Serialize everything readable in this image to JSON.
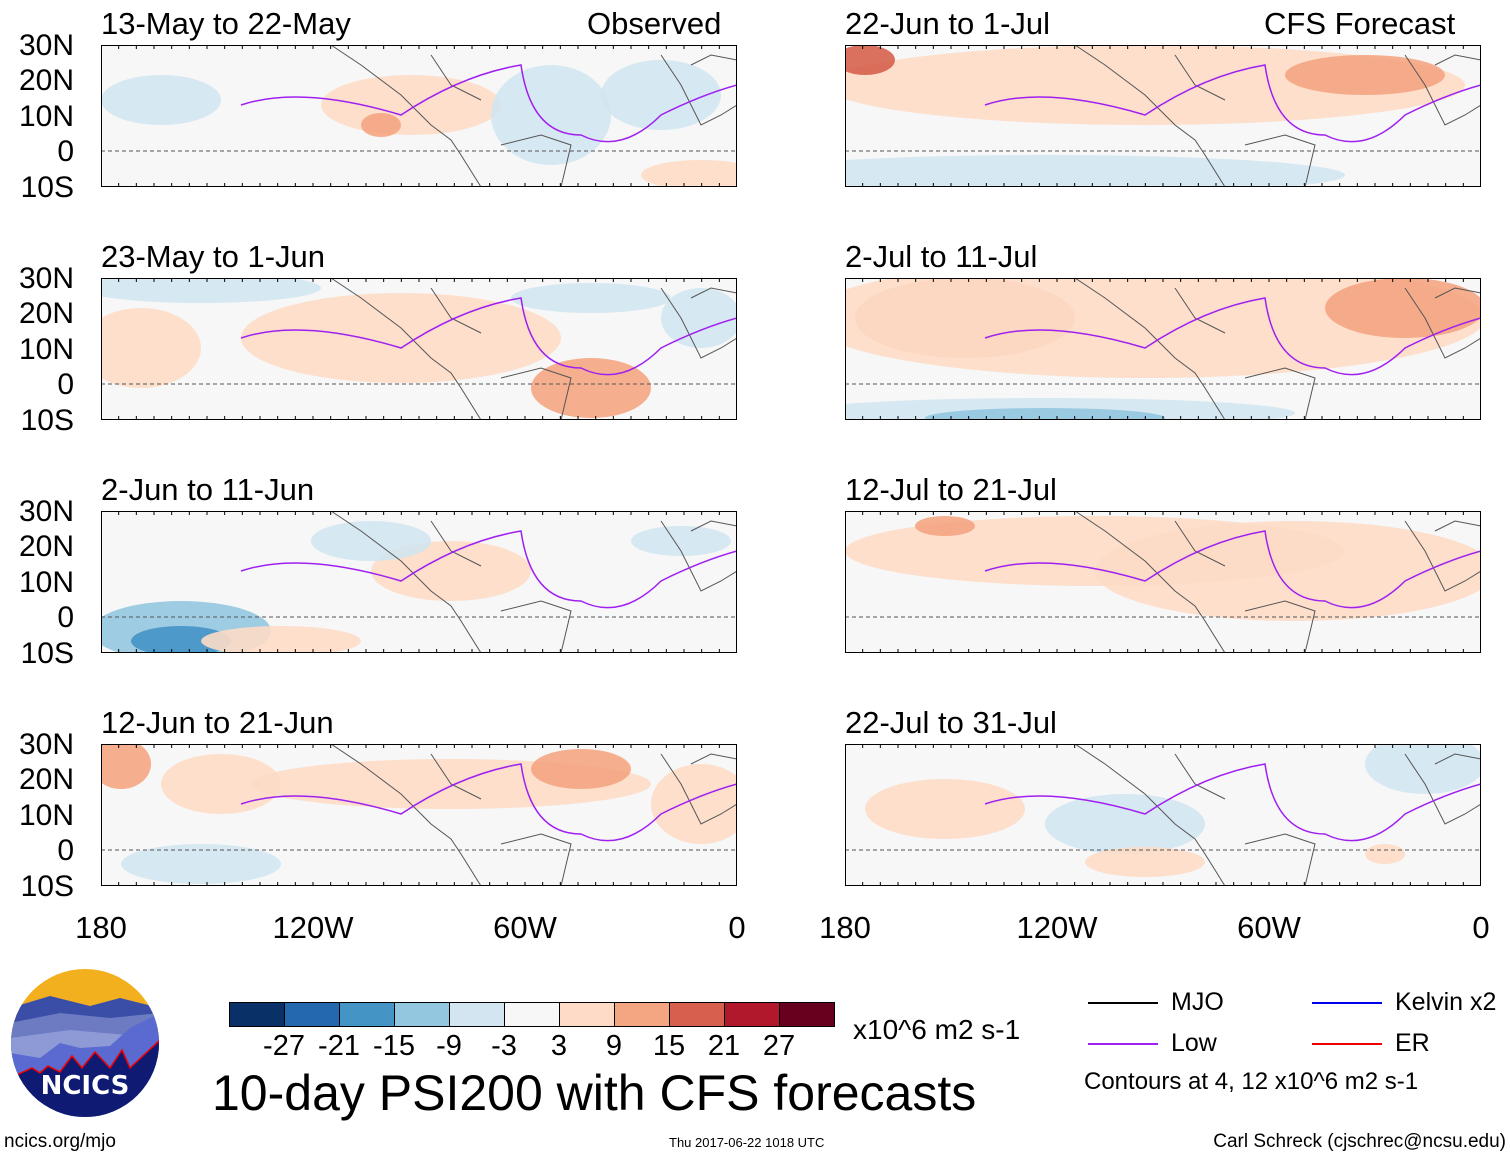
{
  "panels": {
    "observed_label": "Observed",
    "forecast_label": "CFS Forecast",
    "left": [
      "13-May to 22-May",
      "23-May to 1-Jun",
      "2-Jun to 11-Jun",
      "12-Jun to 21-Jun"
    ],
    "right": [
      "22-Jun to 1-Jul",
      "2-Jul to 11-Jul",
      "12-Jul to 21-Jul",
      "22-Jul to 31-Jul"
    ]
  },
  "axes": {
    "lat_labels": [
      "30N",
      "20N",
      "10N",
      "0",
      "10S"
    ],
    "lon_labels": [
      "180",
      "120W",
      "60W",
      "0"
    ]
  },
  "colorbar": {
    "colors": [
      "#0a3068",
      "#2468b0",
      "#4494c6",
      "#93c6df",
      "#d2e5f0",
      "#f7f7f7",
      "#fddbc7",
      "#f4a582",
      "#d6604d",
      "#b2182b",
      "#67001f"
    ],
    "labels": [
      "-27",
      "-21",
      "-15",
      "-9",
      "-3",
      "3",
      "9",
      "15",
      "21",
      "27"
    ],
    "units": "x10^6 m2 s-1"
  },
  "title": "10-day PSI200 with CFS forecasts",
  "timestamp": "Thu 2017-06-22 1018 UTC",
  "logo_text": "NCICS",
  "url": "ncics.org/mjo",
  "credit": "Carl Schreck (cjschrec@ncsu.edu)",
  "legend": {
    "items": [
      {
        "label": "MJO",
        "color": "#000000"
      },
      {
        "label": "Kelvin x2",
        "color": "#0000ee"
      },
      {
        "label": "Low",
        "color": "#a020f0"
      },
      {
        "label": "ER",
        "color": "#ee0000"
      }
    ],
    "note": "Contours at 4, 12 x10^6 m2 s-1"
  }
}
